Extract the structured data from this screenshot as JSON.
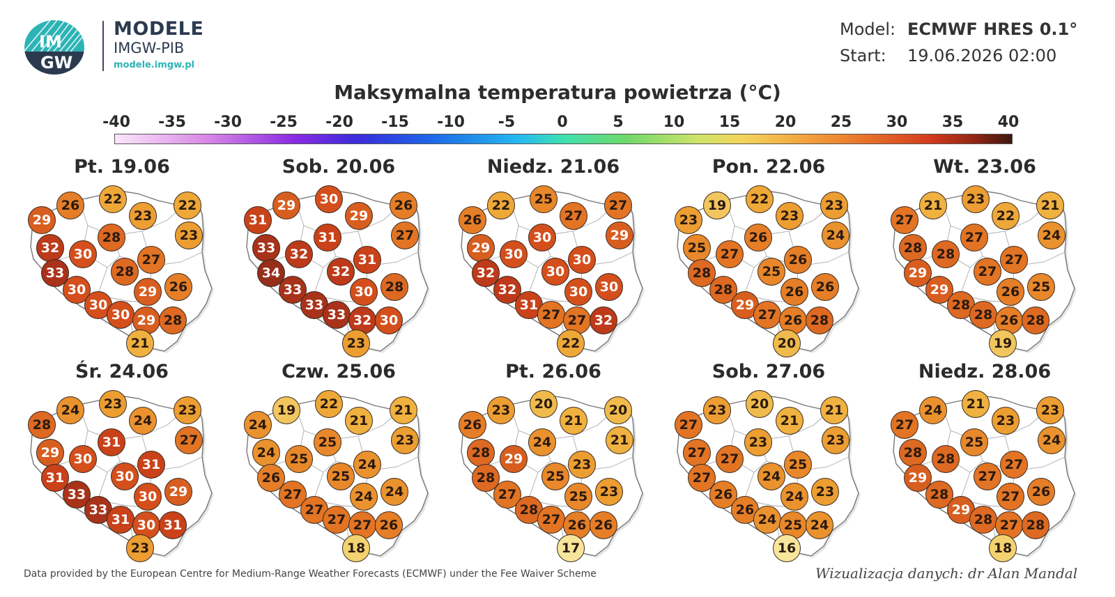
{
  "brand": {
    "logo_text_top": "IM",
    "logo_text_bottom": "GW",
    "title": "MODELE",
    "subtitle": "IMGW-PIB",
    "url": "modele.imgw.pl",
    "accent_color": "#2db3b5"
  },
  "model": {
    "model_label": "Model:",
    "model_value": "ECMWF HRES 0.1°",
    "start_label": "Start:",
    "start_value": "19.06.2026 02:00"
  },
  "title": "Maksymalna temperatura powietrza (°C)",
  "scale": {
    "ticks": [
      "-40",
      "-35",
      "-30",
      "-25",
      "-20",
      "-15",
      "-10",
      "-5",
      "0",
      "5",
      "10",
      "15",
      "20",
      "25",
      "30",
      "35",
      "40"
    ],
    "min": -40,
    "max": 40
  },
  "panels": [
    {
      "day": "Pt. 19.06",
      "values": [
        29,
        26,
        22,
        23,
        22,
        32,
        30,
        28,
        23,
        33,
        28,
        27,
        30,
        29,
        26,
        30,
        30,
        29,
        28,
        21
      ]
    },
    {
      "day": "Sob. 20.06",
      "values": [
        31,
        29,
        30,
        29,
        26,
        33,
        32,
        31,
        27,
        34,
        32,
        31,
        33,
        30,
        28,
        33,
        33,
        32,
        30,
        23
      ]
    },
    {
      "day": "Niedz. 21.06",
      "values": [
        26,
        22,
        25,
        27,
        27,
        29,
        30,
        30,
        29,
        32,
        30,
        30,
        32,
        30,
        30,
        31,
        27,
        27,
        32,
        22
      ]
    },
    {
      "day": "Pon. 22.06",
      "values": [
        23,
        19,
        22,
        23,
        23,
        25,
        27,
        26,
        24,
        28,
        25,
        26,
        28,
        26,
        26,
        29,
        27,
        26,
        28,
        20
      ]
    },
    {
      "day": "Wt. 23.06",
      "values": [
        27,
        21,
        23,
        22,
        21,
        28,
        28,
        27,
        24,
        29,
        27,
        27,
        29,
        26,
        25,
        28,
        28,
        26,
        28,
        19
      ]
    },
    {
      "day": "Śr. 24.06",
      "values": [
        28,
        24,
        23,
        24,
        23,
        29,
        30,
        31,
        27,
        31,
        30,
        31,
        33,
        30,
        29,
        33,
        31,
        30,
        31,
        23
      ]
    },
    {
      "day": "Czw. 25.06",
      "values": [
        24,
        19,
        22,
        21,
        21,
        24,
        25,
        25,
        23,
        26,
        25,
        24,
        27,
        24,
        24,
        27,
        27,
        27,
        26,
        18
      ]
    },
    {
      "day": "Pt. 26.06",
      "values": [
        26,
        23,
        20,
        21,
        20,
        28,
        29,
        24,
        21,
        28,
        25,
        23,
        27,
        25,
        23,
        28,
        27,
        26,
        26,
        17
      ]
    },
    {
      "day": "Sob. 27.06",
      "values": [
        27,
        23,
        20,
        21,
        21,
        27,
        27,
        23,
        23,
        27,
        24,
        25,
        26,
        24,
        23,
        26,
        24,
        25,
        24,
        16
      ]
    },
    {
      "day": "Niedz. 28.06",
      "values": [
        27,
        24,
        21,
        23,
        23,
        28,
        28,
        25,
        24,
        29,
        27,
        27,
        28,
        27,
        26,
        29,
        28,
        27,
        28,
        18
      ]
    }
  ],
  "footer": {
    "left": "Data provided by the European Centre for Medium-Range Weather Forecasts (ECMWF) under the Fee Waiver Scheme",
    "right": "Wizualizacja danych: dr Alan Mandal"
  }
}
